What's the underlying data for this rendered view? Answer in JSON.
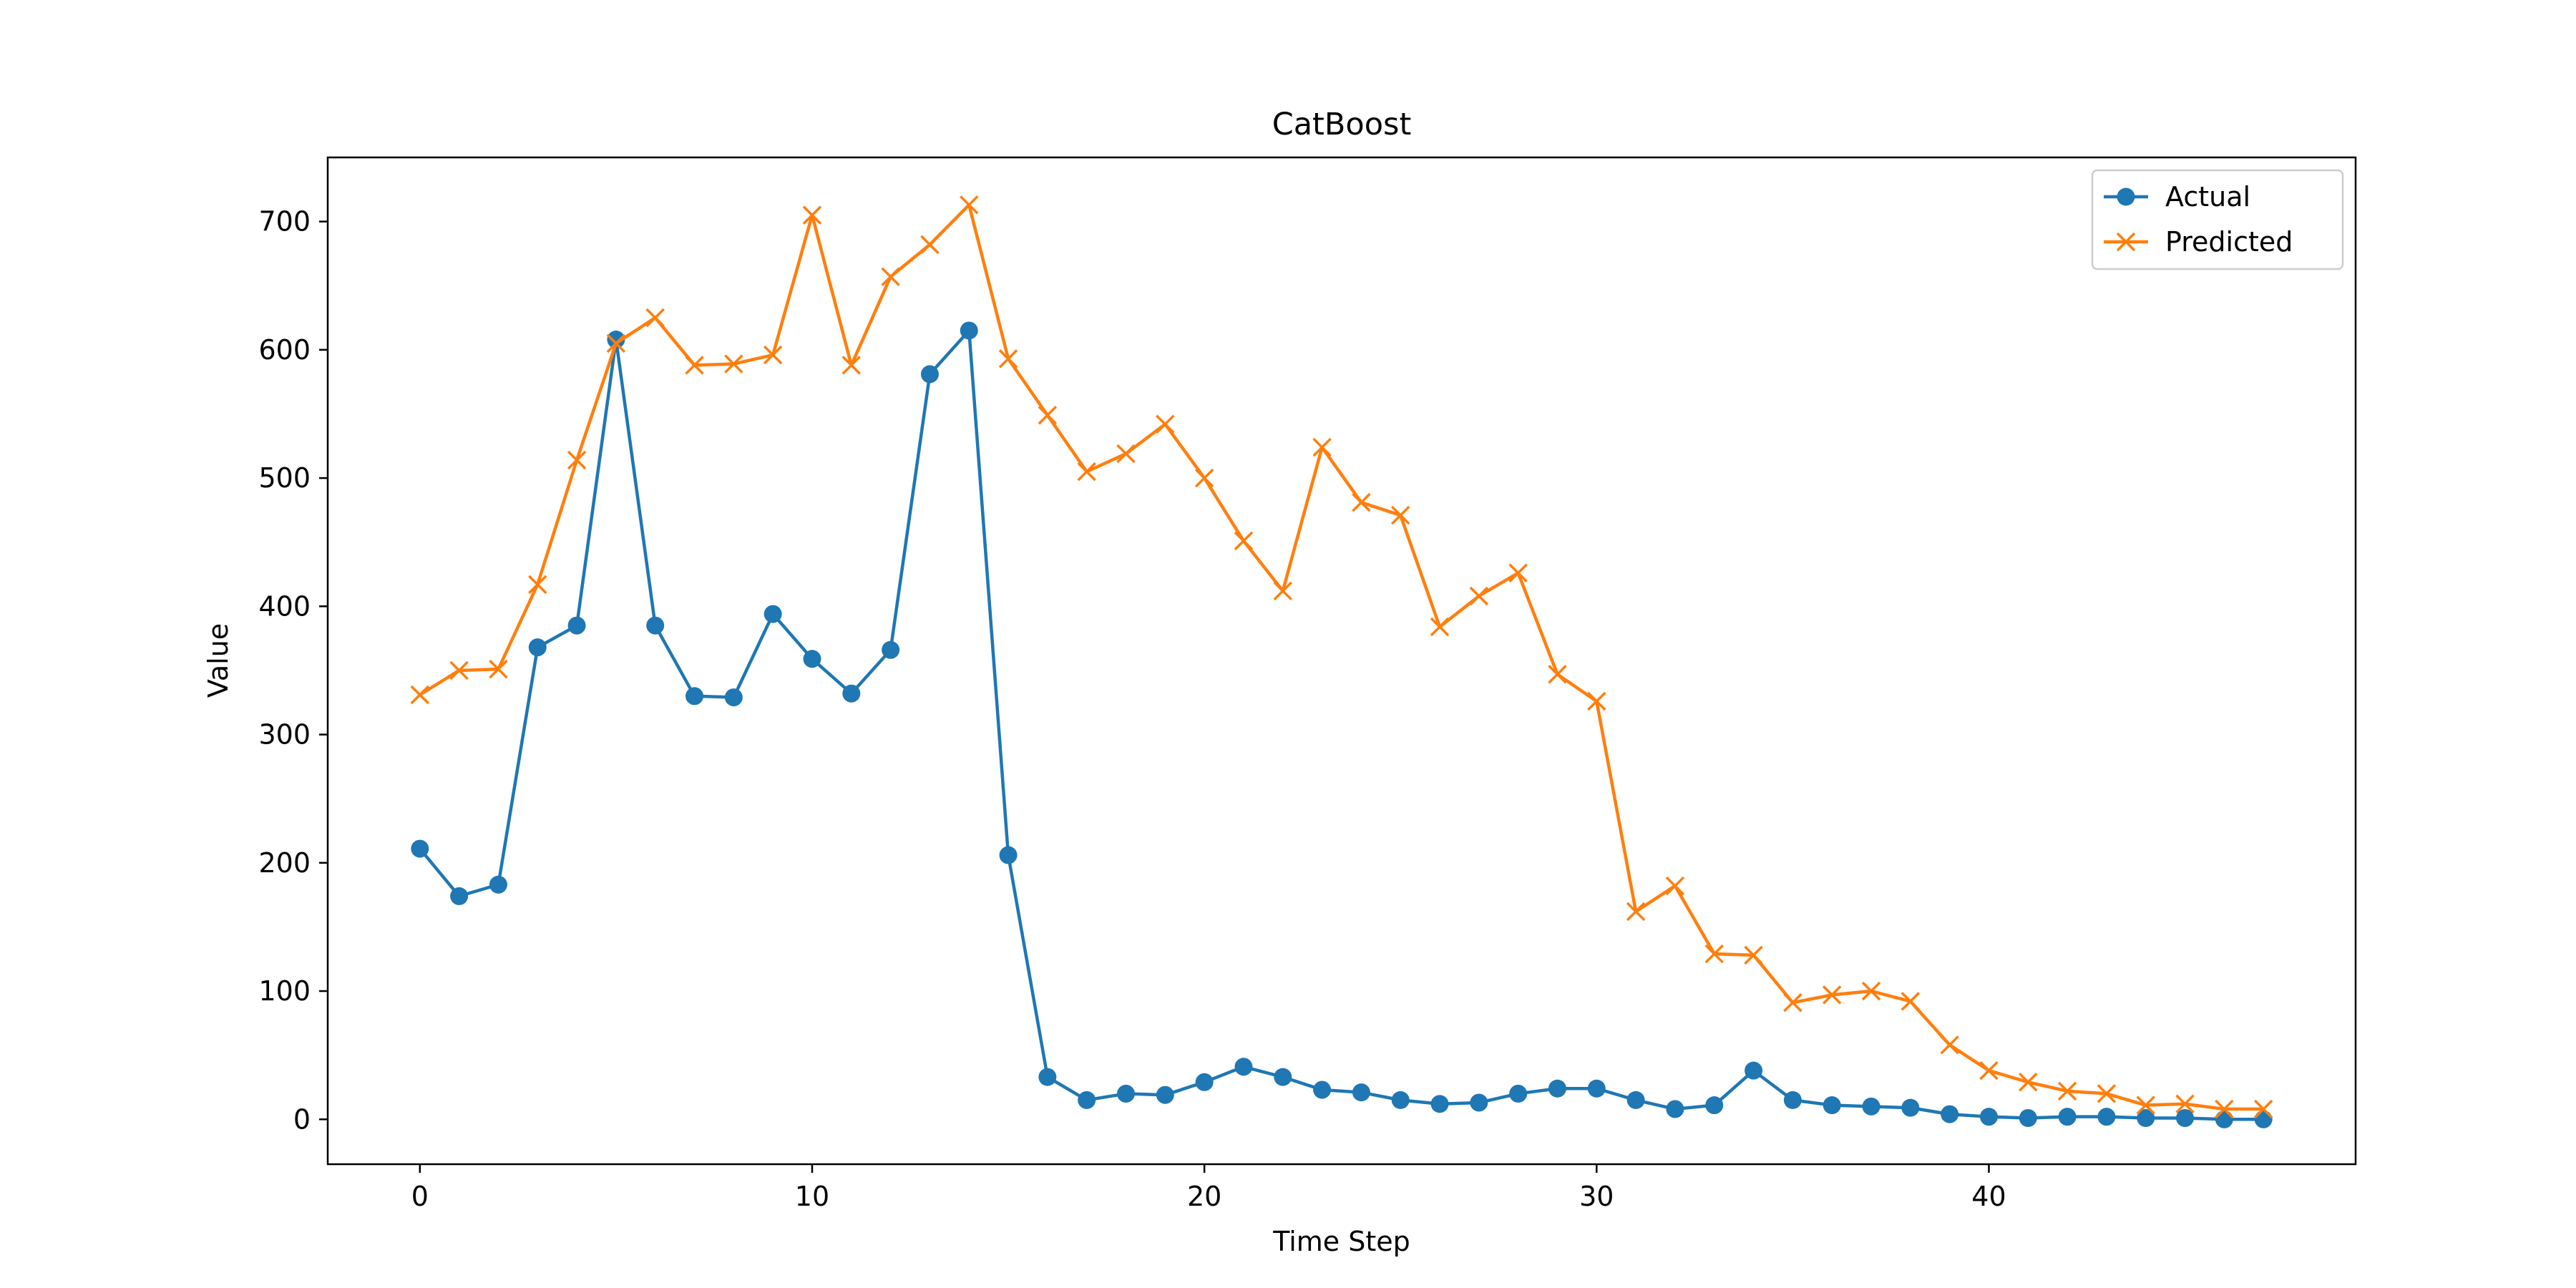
{
  "chart_data": {
    "type": "line",
    "title": "CatBoost",
    "xlabel": "Time Step",
    "ylabel": "Value",
    "xlim": [
      -2.35,
      49.35
    ],
    "ylim": [
      -35,
      750
    ],
    "xticks": [
      0,
      10,
      20,
      30,
      40
    ],
    "yticks": [
      0,
      100,
      200,
      300,
      400,
      500,
      600,
      700
    ],
    "grid": false,
    "legend_position": "top-right",
    "x": [
      0,
      1,
      2,
      3,
      4,
      5,
      6,
      7,
      8,
      9,
      10,
      11,
      12,
      13,
      14,
      15,
      16,
      17,
      18,
      19,
      20,
      21,
      22,
      23,
      24,
      25,
      26,
      27,
      28,
      29,
      30,
      31,
      32,
      33,
      34,
      35,
      36,
      37,
      38,
      39,
      40,
      41,
      42,
      43,
      44,
      45,
      46,
      47
    ],
    "series": [
      {
        "name": "Actual",
        "color": "#1f77b4",
        "marker": "circle",
        "values": [
          211,
          174,
          183,
          368,
          385,
          608,
          385,
          330,
          329,
          394,
          359,
          332,
          366,
          581,
          615,
          206,
          33,
          15,
          20,
          19,
          29,
          41,
          33,
          23,
          21,
          15,
          12,
          13,
          20,
          24,
          24,
          15,
          8,
          11,
          38,
          15,
          11,
          10,
          9,
          4,
          2,
          1,
          2,
          2,
          1,
          1,
          0,
          0
        ]
      },
      {
        "name": "Predicted",
        "color": "#ff7f0e",
        "marker": "x",
        "values": [
          331,
          350,
          351,
          417,
          514,
          605,
          625,
          588,
          589,
          596,
          705,
          588,
          657,
          682,
          713,
          593,
          549,
          505,
          519,
          542,
          500,
          451,
          412,
          524,
          481,
          471,
          384,
          408,
          426,
          347,
          326,
          162,
          182,
          129,
          128,
          91,
          97,
          100,
          92,
          58,
          38,
          29,
          22,
          20,
          11,
          12,
          8,
          8
        ]
      }
    ]
  }
}
